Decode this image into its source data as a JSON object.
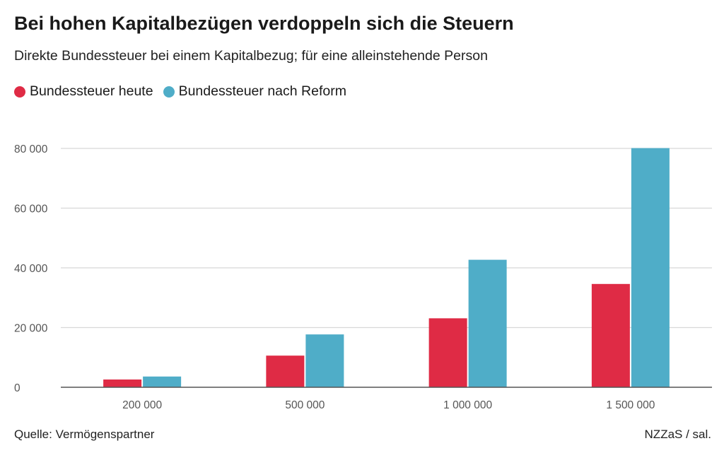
{
  "title": "Bei hohen Kapitalbezügen verdoppeln sich die Steuern",
  "subtitle": "Direkte Bundessteuer bei einem Kapitalbezug; für eine alleinstehende Person",
  "source": "Quelle: Vermögenspartner",
  "credit": "NZZaS / sal.",
  "colors": {
    "heute": "#df2b45",
    "reform": "#4fadc8",
    "grid": "#d8d8d8",
    "axis": "#555555",
    "tick_text": "#555555"
  },
  "chart_data": {
    "type": "bar",
    "categories": [
      "200 000",
      "500 000",
      "1 000 000",
      "1 500 000"
    ],
    "series": [
      {
        "name": "Bundessteuer heute",
        "values": [
          2600,
          10600,
          23100,
          34600
        ]
      },
      {
        "name": "Bundessteuer nach Reform",
        "values": [
          3600,
          17700,
          42700,
          80100
        ]
      }
    ],
    "yticks": [
      0,
      20000,
      40000,
      60000,
      80000
    ],
    "ytick_labels": [
      "0",
      "20 000",
      "40 000",
      "60 000",
      "80 000"
    ],
    "ylim": [
      0,
      80000
    ],
    "grid": true,
    "legend": "top-left"
  }
}
